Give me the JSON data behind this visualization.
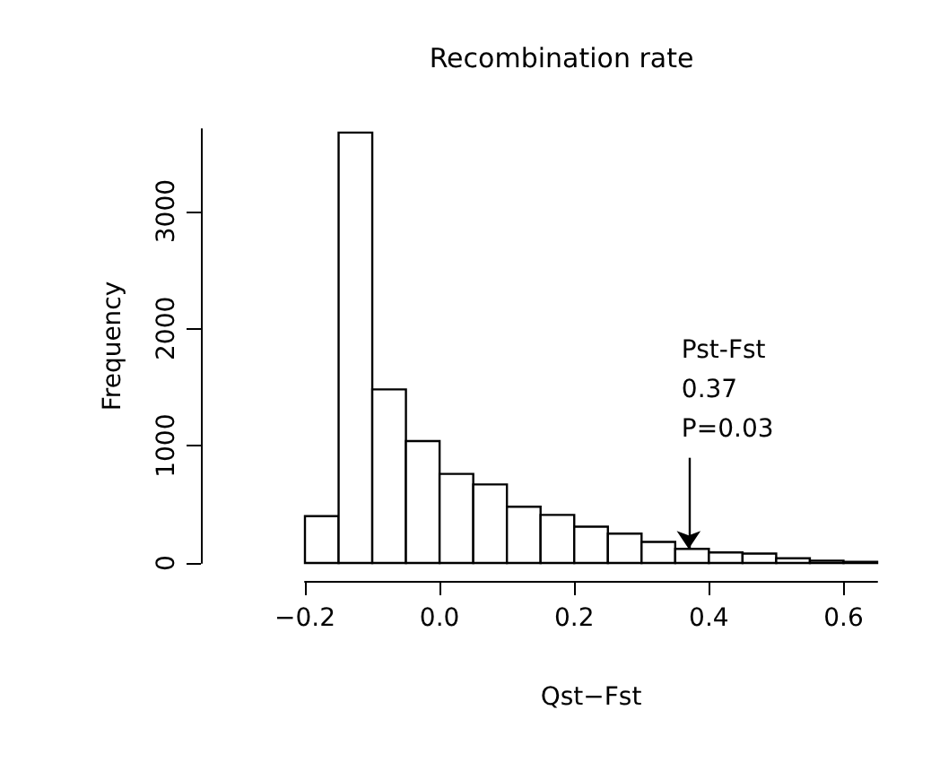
{
  "chart_data": {
    "type": "histogram",
    "title": "Recombination rate",
    "xlabel": "Qst−Fst",
    "ylabel": "Frequency",
    "bins": [
      -0.2,
      -0.15,
      -0.1,
      -0.05,
      0.0,
      0.05,
      0.1,
      0.15,
      0.2,
      0.25,
      0.3,
      0.35,
      0.4,
      0.45,
      0.5,
      0.55,
      0.6,
      0.65
    ],
    "values": [
      400,
      3670,
      1480,
      1040,
      760,
      670,
      480,
      410,
      310,
      250,
      180,
      120,
      90,
      80,
      40,
      20,
      10
    ],
    "color": "#ffffff",
    "xlim": [
      -0.2,
      0.65
    ],
    "xticks": [
      {
        "value": -0.2,
        "label": "−0.2"
      },
      {
        "value": 0.0,
        "label": "0.0"
      },
      0.2,
      0.4,
      0.6
    ],
    "ylim": [
      0,
      3700
    ],
    "yticks": [
      0,
      1000,
      2000,
      3000
    ],
    "annotations": [
      {
        "text": "Pst-Fst\n0.37\nP=0.03",
        "x": 0.37,
        "y": 120
      }
    ],
    "grid": false
  }
}
